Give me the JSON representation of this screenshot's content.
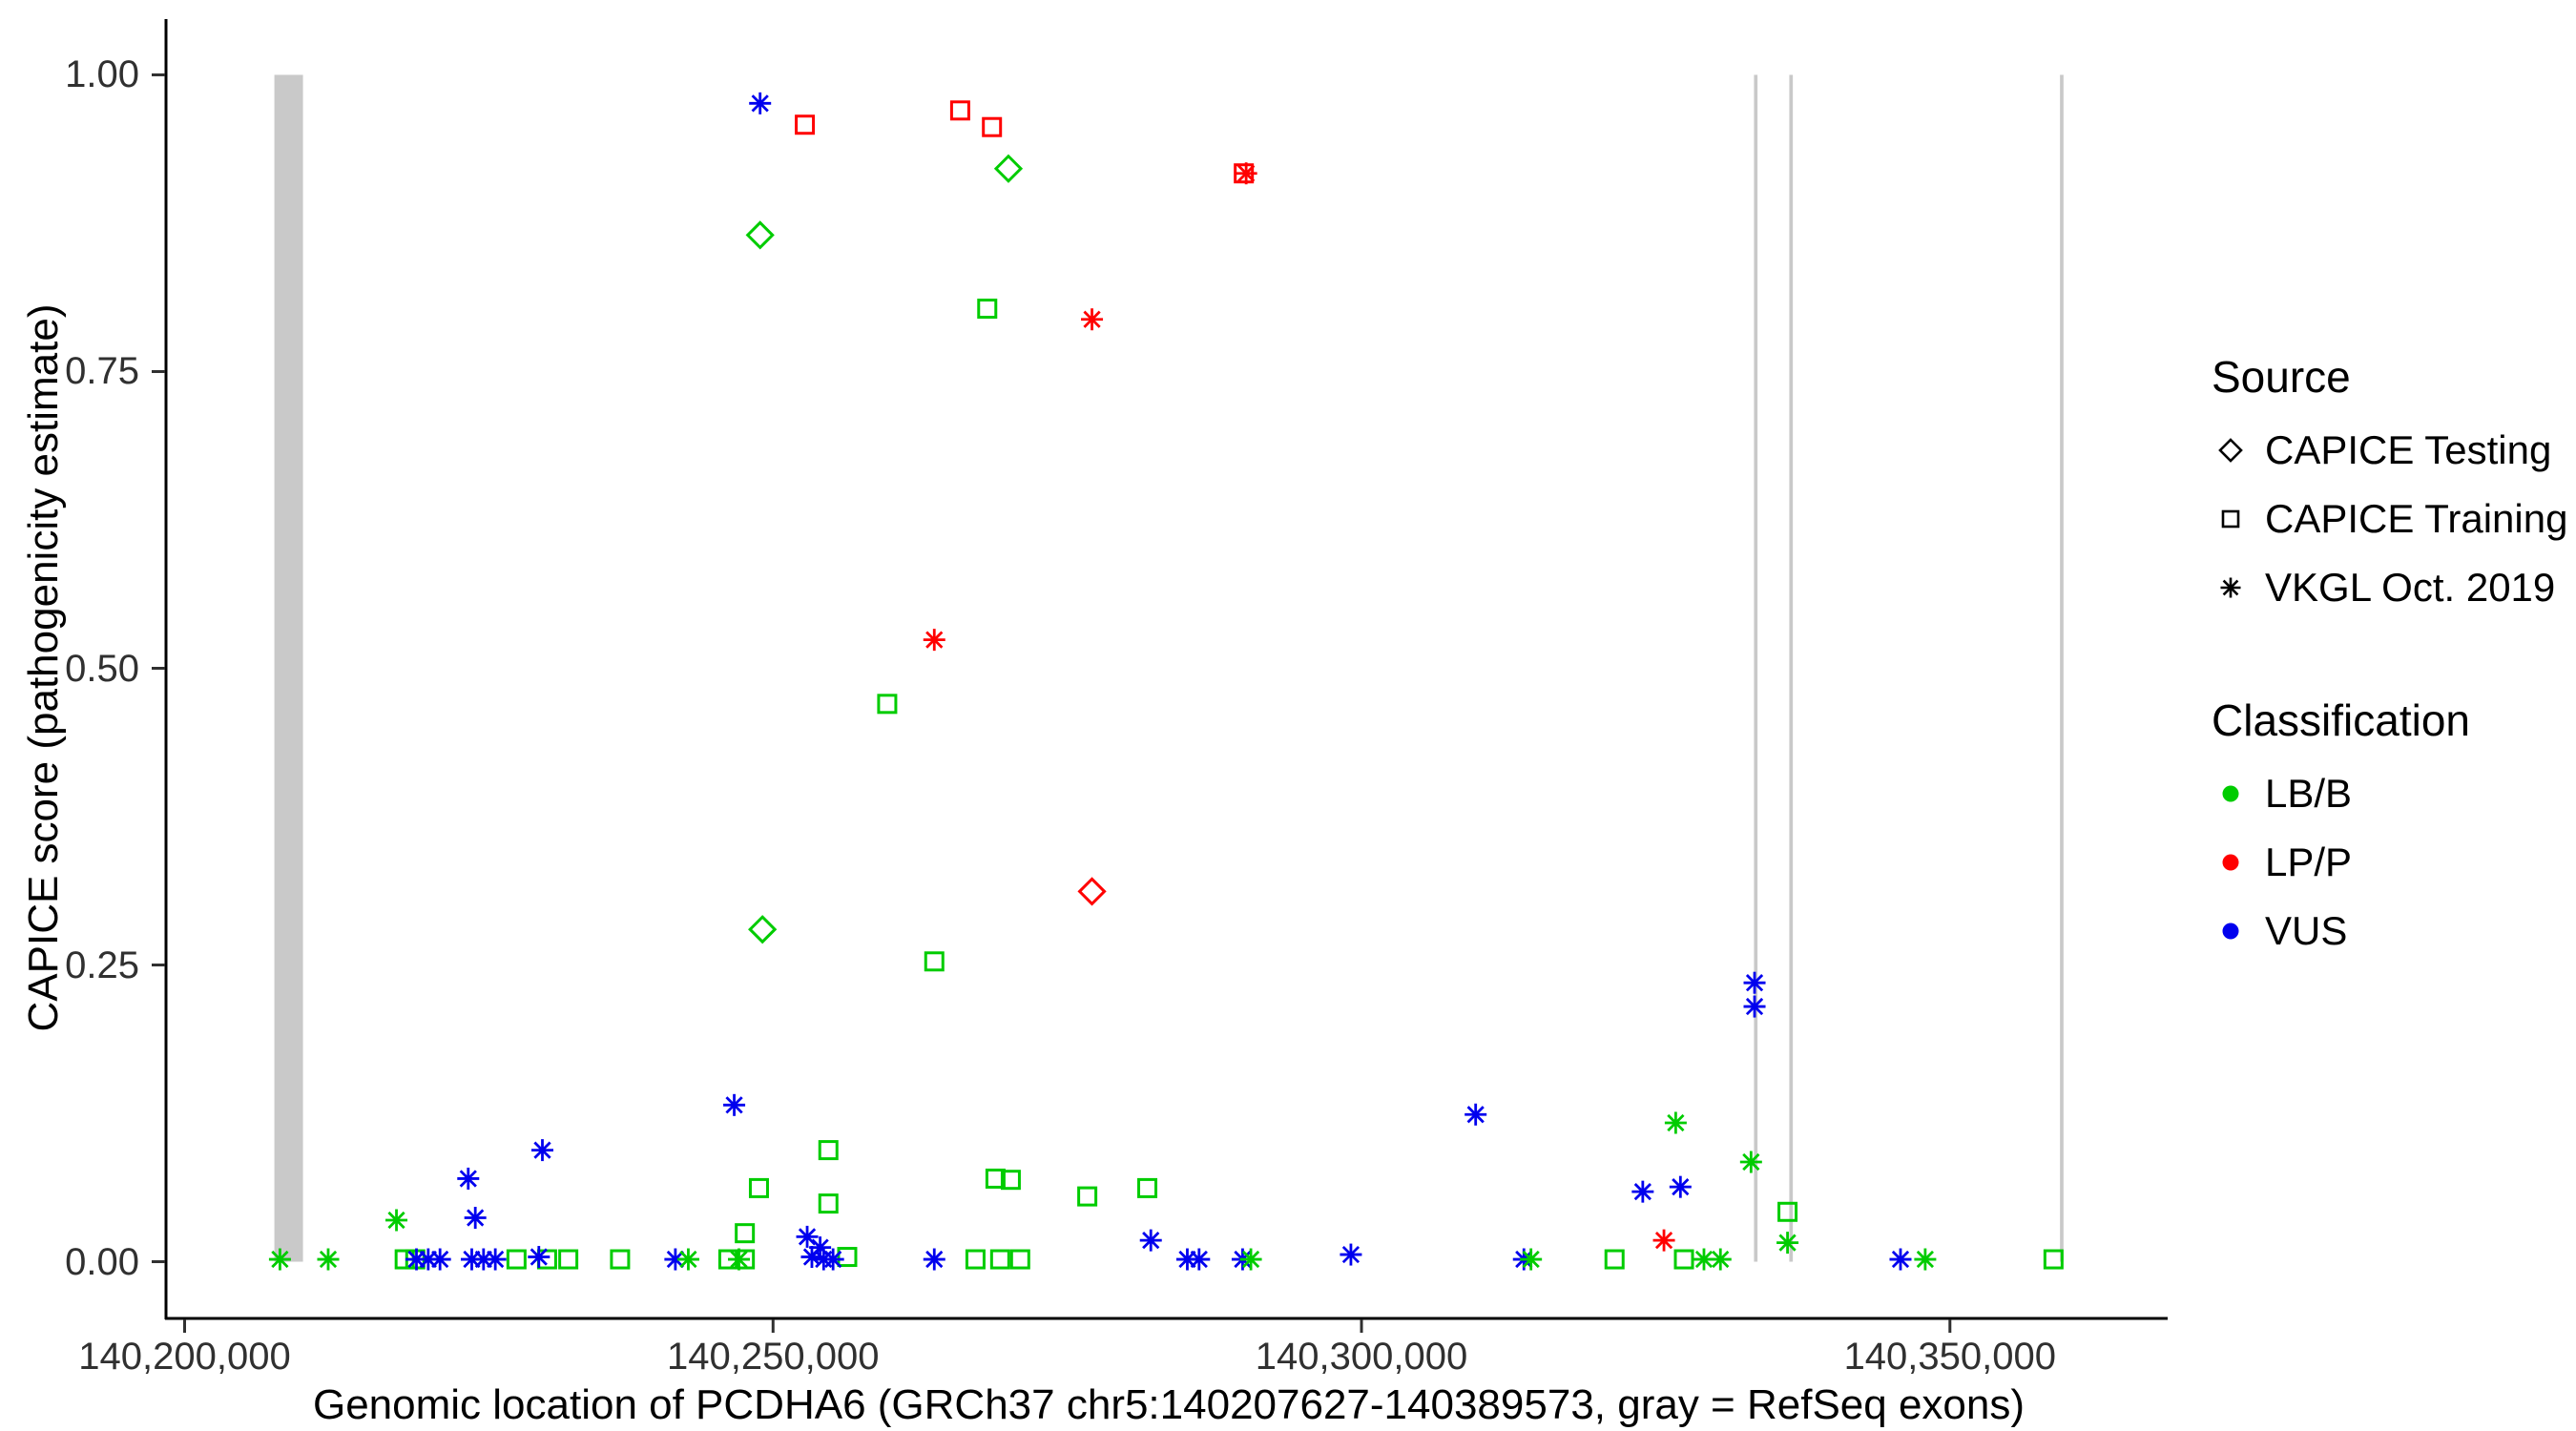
{
  "colors": {
    "LB/B": "#00CC00",
    "LP/P": "#FF0000",
    "VUS": "#0000EE",
    "exon_gray": "#C9C9C9",
    "axis_line": "#000000",
    "tick_text": "#303030"
  },
  "legend": {
    "source": {
      "title": "Source",
      "items": [
        {
          "key": "testing",
          "label": "CAPICE Testing",
          "shape": "diamond"
        },
        {
          "key": "training",
          "label": "CAPICE Training",
          "shape": "square"
        },
        {
          "key": "vkgl",
          "label": "VKGL Oct. 2019",
          "shape": "asterisk"
        }
      ]
    },
    "classification": {
      "title": "Classification",
      "items": [
        {
          "key": "LB/B",
          "label": "LB/B"
        },
        {
          "key": "LP/P",
          "label": "LP/P"
        },
        {
          "key": "VUS",
          "label": "VUS"
        }
      ]
    }
  },
  "chart_data": {
    "type": "scatter",
    "title": "",
    "xlabel": "Genomic location of PCDHA6 (GRCh37 chr5:140207627-140389573, gray = RefSeq exons)",
    "ylabel": "CAPICE score (pathogenicity estimate)",
    "xlim": [
      140198500,
      140368500
    ],
    "ylim": [
      -0.047,
      1.047
    ],
    "grid": false,
    "legend_position": "right",
    "xticks": [
      {
        "v": 140200000,
        "label": "140,200,000"
      },
      {
        "v": 140250000,
        "label": "140,250,000"
      },
      {
        "v": 140300000,
        "label": "140,300,000"
      },
      {
        "v": 140350000,
        "label": "140,350,000"
      }
    ],
    "yticks": [
      {
        "v": 0.0,
        "label": "0.00"
      },
      {
        "v": 0.25,
        "label": "0.25"
      },
      {
        "v": 0.5,
        "label": "0.50"
      },
      {
        "v": 0.75,
        "label": "0.75"
      },
      {
        "v": 1.0,
        "label": "1.00"
      }
    ],
    "refseq_exons": [
      {
        "start": 140207627,
        "end": 140210059
      },
      {
        "start": 140333350,
        "end": 140333650
      },
      {
        "start": 140336350,
        "end": 140336650
      },
      {
        "start": 140359350,
        "end": 140359650
      }
    ],
    "point_fields": [
      "x",
      "y",
      "source_key",
      "classification"
    ],
    "points": [
      [
        140248900,
        0.865,
        "testing",
        "LB/B"
      ],
      [
        140270000,
        0.921,
        "testing",
        "LB/B"
      ],
      [
        140249100,
        0.28,
        "testing",
        "LB/B"
      ],
      [
        140277100,
        0.312,
        "testing",
        "LP/P"
      ],
      [
        140252700,
        0.958,
        "training",
        "LP/P"
      ],
      [
        140265900,
        0.97,
        "training",
        "LP/P"
      ],
      [
        140268600,
        0.956,
        "training",
        "LP/P"
      ],
      [
        140290000,
        0.917,
        "training",
        "LP/P"
      ],
      [
        140268200,
        0.803,
        "training",
        "LB/B"
      ],
      [
        140259700,
        0.47,
        "training",
        "LB/B"
      ],
      [
        140263700,
        0.253,
        "training",
        "LB/B"
      ],
      [
        140247600,
        0.024,
        "training",
        "LB/B"
      ],
      [
        140248800,
        0.062,
        "training",
        "LB/B"
      ],
      [
        140254700,
        0.094,
        "training",
        "LB/B"
      ],
      [
        140254700,
        0.049,
        "training",
        "LB/B"
      ],
      [
        140268900,
        0.07,
        "training",
        "LB/B"
      ],
      [
        140270200,
        0.069,
        "training",
        "LB/B"
      ],
      [
        140276700,
        0.055,
        "training",
        "LB/B"
      ],
      [
        140281800,
        0.062,
        "training",
        "LB/B"
      ],
      [
        140336200,
        0.042,
        "training",
        "LB/B"
      ],
      [
        140218700,
        0.002,
        "training",
        "LB/B"
      ],
      [
        140219600,
        0.002,
        "training",
        "LB/B"
      ],
      [
        140228200,
        0.002,
        "training",
        "LB/B"
      ],
      [
        140230800,
        0.002,
        "training",
        "LB/B"
      ],
      [
        140232600,
        0.002,
        "training",
        "LB/B"
      ],
      [
        140237000,
        0.002,
        "training",
        "LB/B"
      ],
      [
        140246200,
        0.002,
        "training",
        "LB/B"
      ],
      [
        140247600,
        0.002,
        "training",
        "LB/B"
      ],
      [
        140256300,
        0.004,
        "training",
        "LB/B"
      ],
      [
        140267200,
        0.002,
        "training",
        "LB/B"
      ],
      [
        140269300,
        0.002,
        "training",
        "LB/B"
      ],
      [
        140271000,
        0.002,
        "training",
        "LB/B"
      ],
      [
        140321500,
        0.002,
        "training",
        "LB/B"
      ],
      [
        140327400,
        0.002,
        "training",
        "LB/B"
      ],
      [
        140358800,
        0.002,
        "training",
        "LB/B"
      ],
      [
        140248900,
        0.976,
        "vkgl",
        "VUS"
      ],
      [
        140290200,
        0.917,
        "vkgl",
        "LP/P"
      ],
      [
        140277100,
        0.794,
        "vkgl",
        "LP/P"
      ],
      [
        140263700,
        0.524,
        "vkgl",
        "LP/P"
      ],
      [
        140333400,
        0.235,
        "vkgl",
        "VUS"
      ],
      [
        140333400,
        0.215,
        "vkgl",
        "VUS"
      ],
      [
        140246700,
        0.132,
        "vkgl",
        "VUS"
      ],
      [
        140309700,
        0.124,
        "vkgl",
        "VUS"
      ],
      [
        140326700,
        0.117,
        "vkgl",
        "LB/B"
      ],
      [
        140230400,
        0.094,
        "vkgl",
        "VUS"
      ],
      [
        140333100,
        0.084,
        "vkgl",
        "LB/B"
      ],
      [
        140224100,
        0.07,
        "vkgl",
        "VUS"
      ],
      [
        140327100,
        0.063,
        "vkgl",
        "VUS"
      ],
      [
        140323900,
        0.059,
        "vkgl",
        "VUS"
      ],
      [
        140224700,
        0.037,
        "vkgl",
        "VUS"
      ],
      [
        140218000,
        0.035,
        "vkgl",
        "LB/B"
      ],
      [
        140252900,
        0.021,
        "vkgl",
        "VUS"
      ],
      [
        140325700,
        0.018,
        "vkgl",
        "LP/P"
      ],
      [
        140282100,
        0.018,
        "vkgl",
        "VUS"
      ],
      [
        140336200,
        0.016,
        "vkgl",
        "LB/B"
      ],
      [
        140254000,
        0.012,
        "vkgl",
        "VUS"
      ],
      [
        140208100,
        0.002,
        "vkgl",
        "LB/B"
      ],
      [
        140212200,
        0.002,
        "vkgl",
        "LB/B"
      ],
      [
        140219700,
        0.002,
        "vkgl",
        "VUS"
      ],
      [
        140220700,
        0.002,
        "vkgl",
        "VUS"
      ],
      [
        140221700,
        0.002,
        "vkgl",
        "VUS"
      ],
      [
        140224400,
        0.002,
        "vkgl",
        "VUS"
      ],
      [
        140225400,
        0.002,
        "vkgl",
        "VUS"
      ],
      [
        140226400,
        0.002,
        "vkgl",
        "VUS"
      ],
      [
        140230100,
        0.004,
        "vkgl",
        "VUS"
      ],
      [
        140241700,
        0.002,
        "vkgl",
        "VUS"
      ],
      [
        140242800,
        0.002,
        "vkgl",
        "LB/B"
      ],
      [
        140247100,
        0.002,
        "vkgl",
        "LB/B"
      ],
      [
        140253300,
        0.004,
        "vkgl",
        "VUS"
      ],
      [
        140254300,
        0.002,
        "vkgl",
        "VUS"
      ],
      [
        140255100,
        0.002,
        "vkgl",
        "VUS"
      ],
      [
        140263700,
        0.002,
        "vkgl",
        "VUS"
      ],
      [
        140285200,
        0.002,
        "vkgl",
        "VUS"
      ],
      [
        140286200,
        0.002,
        "vkgl",
        "VUS"
      ],
      [
        140289900,
        0.002,
        "vkgl",
        "VUS"
      ],
      [
        140290600,
        0.002,
        "vkgl",
        "LB/B"
      ],
      [
        140299100,
        0.006,
        "vkgl",
        "VUS"
      ],
      [
        140313800,
        0.002,
        "vkgl",
        "VUS"
      ],
      [
        140314400,
        0.002,
        "vkgl",
        "LB/B"
      ],
      [
        140329100,
        0.002,
        "vkgl",
        "LB/B"
      ],
      [
        140330500,
        0.002,
        "vkgl",
        "LB/B"
      ],
      [
        140345800,
        0.002,
        "vkgl",
        "VUS"
      ],
      [
        140347900,
        0.002,
        "vkgl",
        "LB/B"
      ]
    ]
  }
}
